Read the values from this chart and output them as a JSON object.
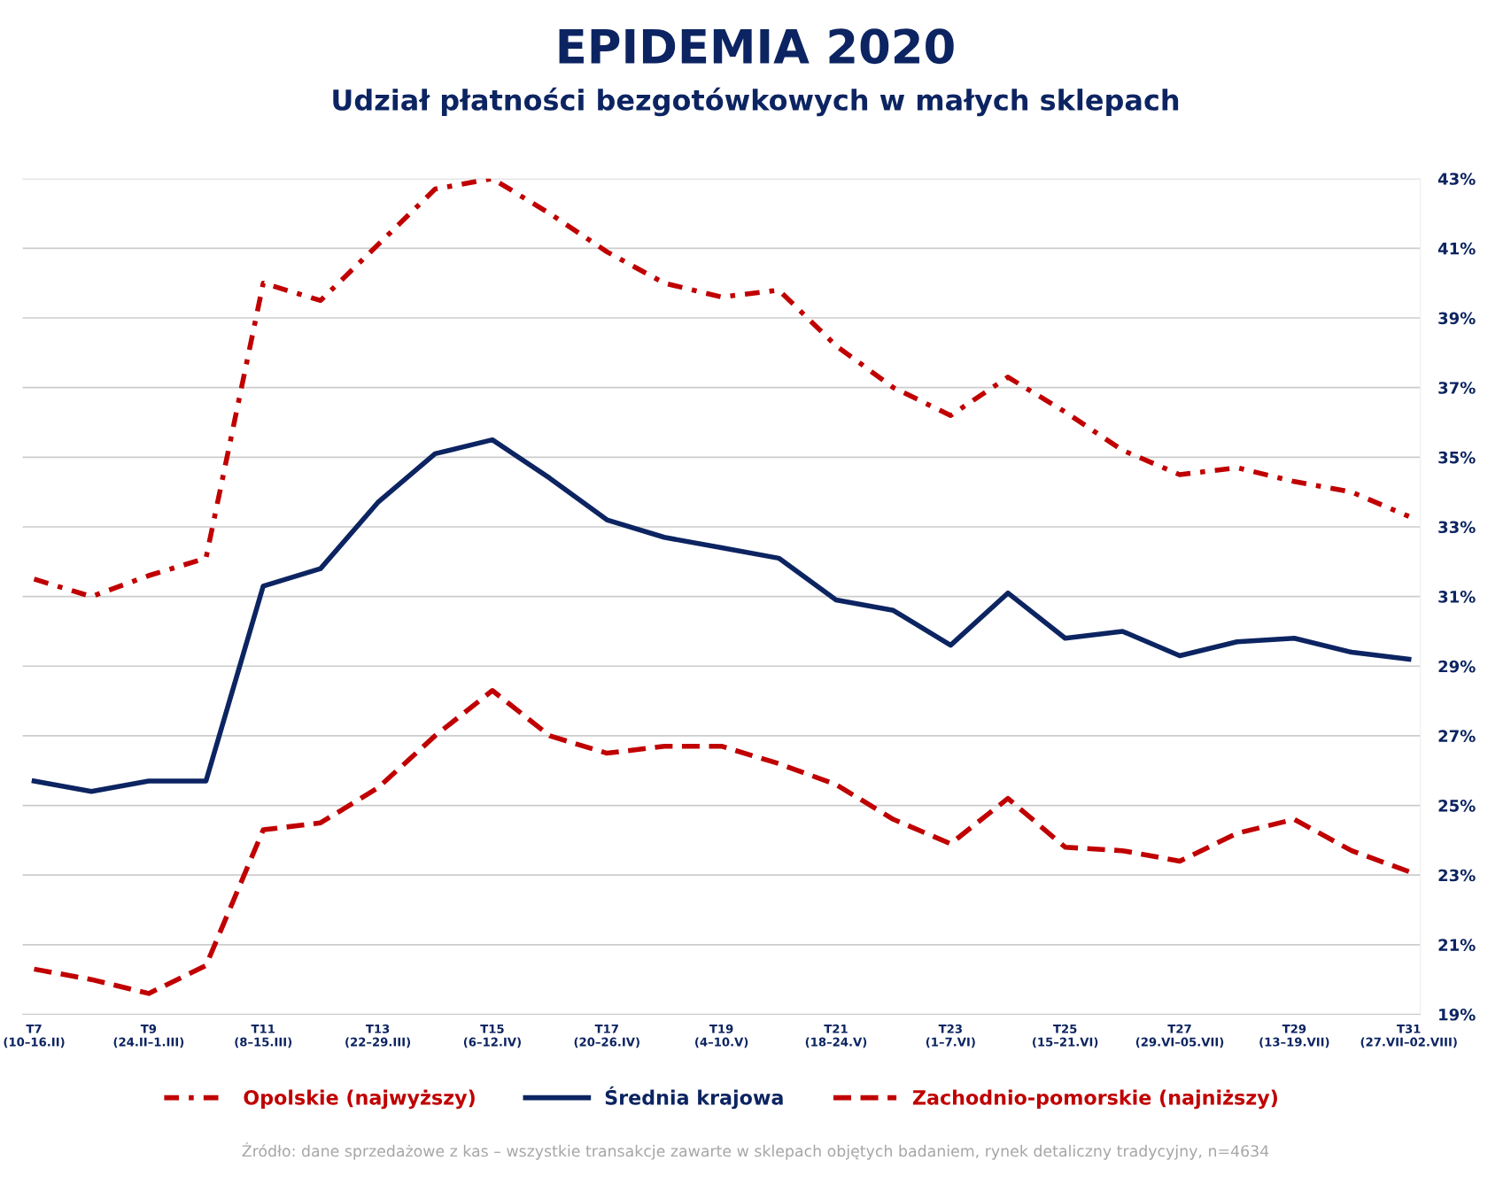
{
  "chart_data": {
    "type": "line",
    "title": "EPIDEMIA 2020",
    "subtitle": "Udział płatności bezgotówkowych w małych sklepach",
    "categories": [
      "T7\n(10–16.II)",
      null,
      "T9\n(24.II–1.III)",
      null,
      "T11\n(8–15.III)",
      null,
      "T13\n(22–29.III)",
      null,
      "T15\n(6–12.IV)",
      null,
      "T17\n(20–26.IV)",
      null,
      "T19\n(4–10.V)",
      null,
      "T21\n(18–24.V)",
      null,
      "T23\n(1–7.VI)",
      null,
      "T25\n(15–21.VI)",
      null,
      "T27\n(29.VI–05.VII)",
      null,
      "T29\n(13–19.VII)",
      null,
      "T31\n(27.VII–02.VIII)"
    ],
    "series": [
      {
        "name": "Opolskie (najwyższy)",
        "color": "#c00000",
        "line_style": "dashdot",
        "values": [
          31.5,
          31.0,
          31.6,
          32.1,
          40.0,
          39.5,
          41.1,
          42.7,
          43.0,
          42.0,
          40.9,
          40.0,
          39.6,
          39.8,
          38.2,
          37.0,
          36.2,
          37.3,
          36.3,
          35.2,
          34.5,
          34.7,
          34.3,
          34.0,
          33.3
        ]
      },
      {
        "name": "Średnia krajowa",
        "color": "#0c2461",
        "line_style": "solid",
        "values": [
          25.7,
          25.4,
          25.7,
          25.7,
          31.3,
          31.8,
          33.7,
          35.1,
          35.5,
          34.4,
          33.2,
          32.7,
          32.4,
          32.1,
          30.9,
          30.6,
          29.6,
          31.1,
          29.8,
          30.0,
          29.3,
          29.7,
          29.8,
          29.4,
          29.2
        ]
      },
      {
        "name": "Zachodnio-pomorskie (najniższy)",
        "color": "#c00000",
        "line_style": "dashed",
        "values": [
          20.3,
          20.0,
          19.6,
          20.4,
          24.3,
          24.5,
          25.5,
          27.0,
          28.3,
          27.0,
          26.5,
          26.7,
          26.7,
          26.2,
          25.6,
          24.6,
          23.9,
          25.2,
          23.8,
          23.7,
          23.4,
          24.2,
          24.6,
          23.7,
          23.1
        ]
      }
    ],
    "ylim": [
      19,
      43
    ],
    "yticks": [
      {
        "value": 19,
        "label": "19%"
      },
      {
        "value": 21,
        "label": "21%"
      },
      {
        "value": 23,
        "label": "23%"
      },
      {
        "value": 25,
        "label": "25%"
      },
      {
        "value": 27,
        "label": "27%"
      },
      {
        "value": 29,
        "label": "29%"
      },
      {
        "value": 31,
        "label": "31%"
      },
      {
        "value": 33,
        "label": "33%"
      },
      {
        "value": 35,
        "label": "35%"
      },
      {
        "value": 37,
        "label": "37%"
      },
      {
        "value": 39,
        "label": "39%"
      },
      {
        "value": 41,
        "label": "41%"
      },
      {
        "value": 43,
        "label": "43%"
      }
    ],
    "grid": "y",
    "legend": "bottom",
    "marker": "none",
    "annotations": [
      "Źródło: dane sprzedażowe z kas – wszystkie transakcje zawarte w sklepach objętych badaniem, rynek detaliczny tradycyjny, n=4634"
    ]
  }
}
